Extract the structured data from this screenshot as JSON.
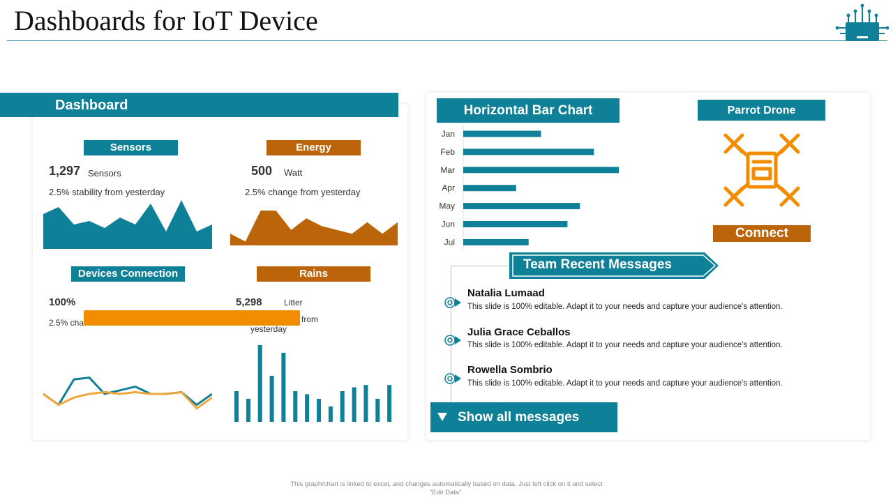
{
  "page": {
    "title": "Dashboards for IoT Device",
    "footer_line1": "This graph/chart is linked to excel, and changes automatically based on data. Just left click on it and select",
    "footer_line2": "“Edit Data”."
  },
  "dashboard": {
    "header": "Dashboard",
    "sensors": {
      "label": "Sensors",
      "value": "1,297",
      "unit": "Sensors",
      "note": "2.5% stability from yesterday",
      "series": [
        10,
        12,
        7,
        8,
        6,
        9,
        7,
        13,
        5,
        14,
        5,
        7
      ]
    },
    "energy": {
      "label": "Energy",
      "value": "500",
      "unit": "Watt",
      "note": "2.5% change from yesterday",
      "series": [
        3,
        1,
        9,
        9,
        4,
        7,
        5,
        4,
        3,
        6,
        3,
        6
      ]
    },
    "devices": {
      "label": "Devices Connection",
      "value": "100%",
      "note_visible": "2.5% cha",
      "series_a": [
        5,
        2,
        9,
        9.5,
        5,
        6,
        7,
        5,
        5,
        5.5,
        2,
        5
      ],
      "series_b": [
        5,
        2,
        4,
        5,
        5.5,
        5,
        5.5,
        5,
        5,
        5.5,
        1,
        4
      ]
    },
    "rains": {
      "label": "Rains",
      "value": "5,298",
      "unit": "Litter",
      "note_from": "from",
      "note_yesterday": "yesterday",
      "bars": [
        4,
        3,
        10,
        6,
        9,
        4,
        3.6,
        3,
        2,
        4,
        4.5,
        4.8,
        3,
        4.8
      ]
    },
    "overlay_color": "#f28c00"
  },
  "bar_panel": {
    "header": "Horizontal  Bar Chart",
    "chart_data": {
      "type": "bar",
      "orientation": "horizontal",
      "categories": [
        "Jan",
        "Feb",
        "Mar",
        "Apr",
        "May",
        "Jun",
        "Jul"
      ],
      "values": [
        50,
        84,
        100,
        34,
        75,
        67,
        42
      ],
      "color": "#0e8098"
    }
  },
  "drone": {
    "header": "Parrot Drone",
    "icon": "drone-icon",
    "connect_label": "Connect"
  },
  "messages": {
    "header": "Team Recent Messages",
    "items": [
      {
        "name": "Natalia Lumaad",
        "text": "This slide is 100% editable. Adapt it to your needs and capture your audience's attention."
      },
      {
        "name": "Julia Grace Ceballos",
        "text": "This slide is 100% editable. Adapt it to your needs and capture your audience's attention."
      },
      {
        "name": "Rowella Sombrio",
        "text": "This slide is 100% editable. Adapt it to your needs and capture your audience's attention."
      }
    ],
    "show_all_label": "Show all messages"
  },
  "colors": {
    "teal": "#0e8098",
    "orange": "#bb6409",
    "orange_light": "#f0a63a"
  }
}
